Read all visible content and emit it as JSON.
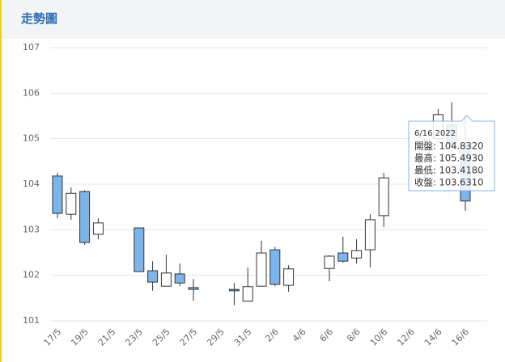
{
  "header": {
    "title": "走勢圖"
  },
  "chart_data": {
    "type": "candlestick",
    "categories": [
      "17/5",
      null,
      "19/5",
      null,
      "21/5",
      null,
      "23/5",
      null,
      "25/5",
      null,
      "27/5",
      null,
      "29/5",
      null,
      "31/5",
      null,
      "2/6",
      null,
      "4/6",
      null,
      "6/6",
      null,
      "8/6",
      null,
      "10/6",
      null,
      "12/6",
      null,
      "14/6",
      null,
      "16/6"
    ],
    "open": [
      104.18,
      103.34,
      103.84,
      102.9,
      null,
      null,
      103.04,
      102.1,
      101.76,
      102.03,
      101.73,
      null,
      null,
      101.69,
      101.43,
      101.76,
      102.56,
      101.78,
      null,
      null,
      102.15,
      102.49,
      102.38,
      102.56,
      103.31,
      null,
      null,
      104.3,
      105.0,
      105.3,
      104.832
    ],
    "high": [
      104.25,
      103.93,
      103.87,
      103.25,
      null,
      null,
      103.04,
      102.31,
      102.45,
      102.26,
      101.92,
      null,
      null,
      101.83,
      102.17,
      102.76,
      102.62,
      102.22,
      null,
      null,
      102.44,
      102.85,
      102.79,
      103.34,
      104.25,
      null,
      null,
      105.0,
      105.65,
      105.8,
      105.493
    ],
    "low": [
      103.25,
      103.22,
      102.67,
      102.79,
      null,
      null,
      102.08,
      101.66,
      101.75,
      101.76,
      101.44,
      null,
      null,
      101.34,
      101.43,
      101.76,
      101.76,
      101.64,
      null,
      null,
      101.87,
      102.28,
      102.26,
      102.17,
      103.06,
      null,
      null,
      104.1,
      104.9,
      104.7,
      103.418
    ],
    "close": [
      103.36,
      103.8,
      102.72,
      103.15,
      null,
      null,
      102.08,
      101.85,
      102.05,
      101.83,
      101.69,
      null,
      null,
      101.66,
      101.75,
      102.49,
      101.8,
      102.14,
      null,
      null,
      102.42,
      102.31,
      102.54,
      103.22,
      104.14,
      null,
      null,
      104.8,
      105.53,
      104.9,
      103.631
    ],
    "up_color": "#ffffff",
    "down_color": "#7cb5ec",
    "ylim": [
      101,
      107
    ],
    "yticks": [
      101,
      102,
      103,
      104,
      105,
      106,
      107
    ],
    "grid": true,
    "tooltip": {
      "title": "6/16 2022",
      "lines": [
        "開盤: 104.8320",
        "最高: 105.4930",
        "最低: 103.4180",
        "收盤: 103.6310"
      ]
    }
  }
}
